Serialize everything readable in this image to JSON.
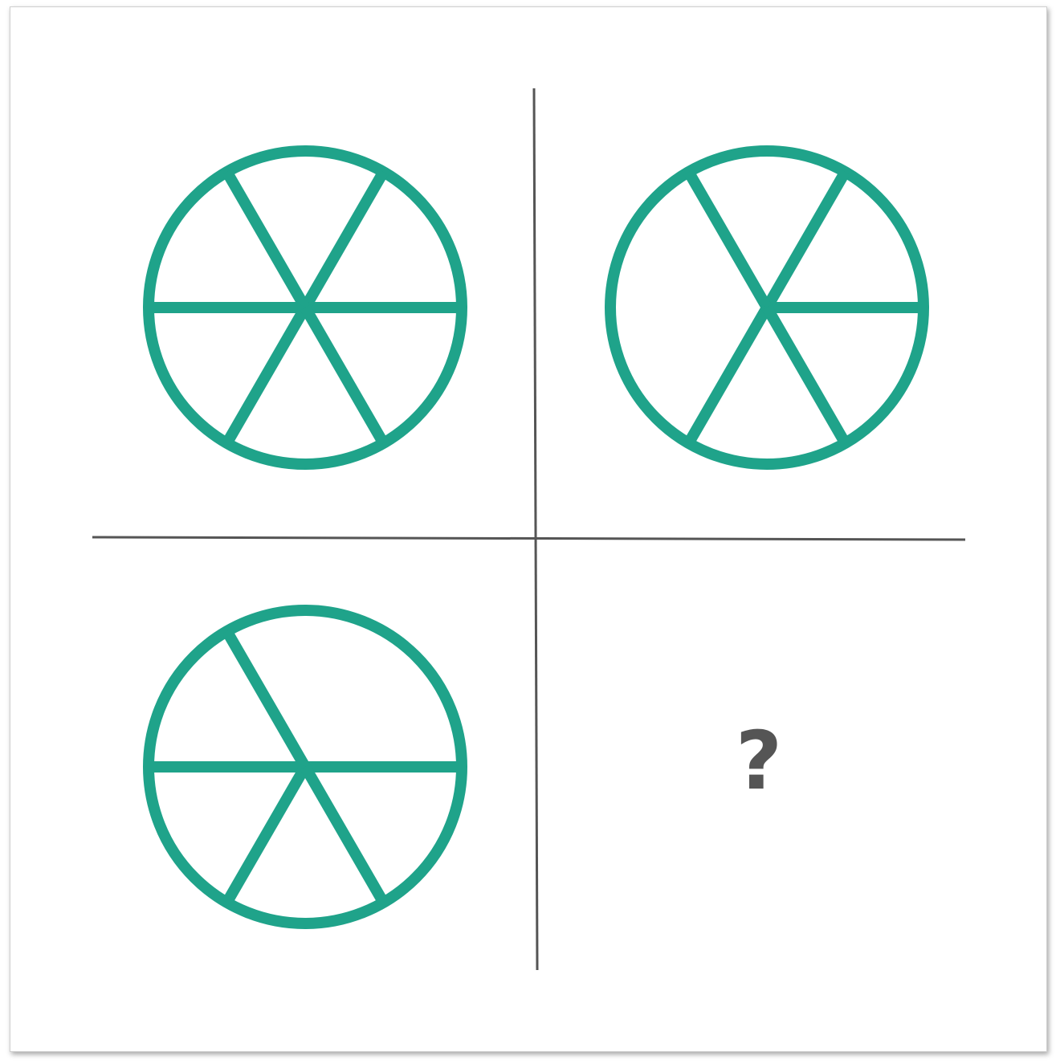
{
  "colors": {
    "stroke": "#1fa38a",
    "divider": "#555555",
    "question": "#555555"
  },
  "figures": [
    {
      "panel": "top-left",
      "spokes": [
        0,
        60,
        120,
        180,
        240,
        300
      ]
    },
    {
      "panel": "top-right",
      "spokes": [
        0,
        60,
        120,
        240,
        300
      ]
    },
    {
      "panel": "bottom-left",
      "spokes": [
        0,
        120,
        180,
        240,
        300
      ]
    }
  ],
  "missing_panel": {
    "symbol": "?"
  }
}
